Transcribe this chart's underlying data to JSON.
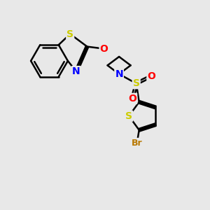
{
  "bg_color": "#e8e8e8",
  "bond_color": "#000000",
  "bond_width": 1.8,
  "atom_colors": {
    "S": "#cccc00",
    "N": "#0000ff",
    "O": "#ff0000",
    "Br": "#b87800"
  },
  "font_size_atom": 10,
  "font_size_br": 9
}
